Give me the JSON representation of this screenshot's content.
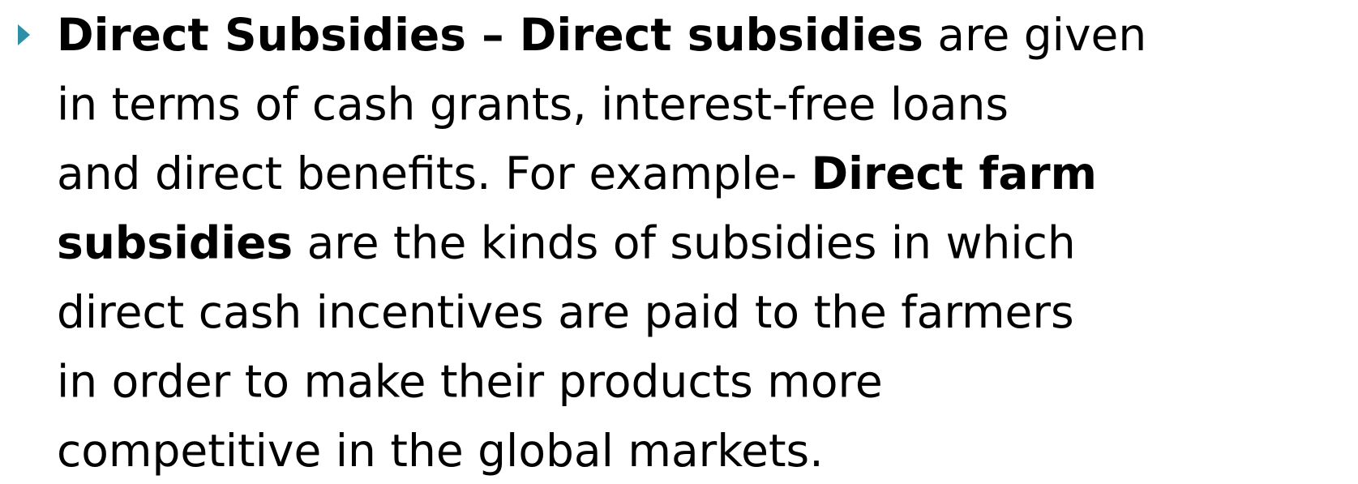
{
  "bullet": {
    "lines": [
      [
        {
          "text": "Direct Subsidies – Direct subsidies",
          "bold": true
        },
        {
          "text": " are given",
          "bold": false
        }
      ],
      [
        {
          "text": "in terms of cash grants, interest-free loans",
          "bold": false
        }
      ],
      [
        {
          "text": "and direct benefits. For example- ",
          "bold": false
        },
        {
          "text": "Direct farm",
          "bold": true
        }
      ],
      [
        {
          "text": "subsidies",
          "bold": true
        },
        {
          "text": " are the kinds of subsidies in which",
          "bold": false
        }
      ],
      [
        {
          "text": "direct cash incentives are paid to the farmers",
          "bold": false
        }
      ],
      [
        {
          "text": "in order to make their products more",
          "bold": false
        }
      ],
      [
        {
          "text": "competitive in the global markets.",
          "bold": false
        }
      ]
    ]
  }
}
